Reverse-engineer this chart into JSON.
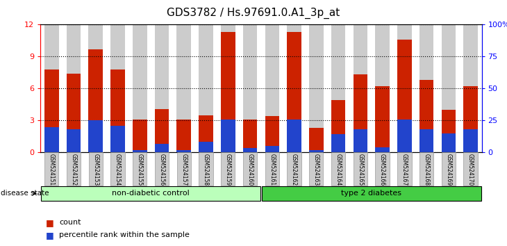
{
  "title": "GDS3782 / Hs.97691.0.A1_3p_at",
  "samples": [
    "GSM524151",
    "GSM524152",
    "GSM524153",
    "GSM524154",
    "GSM524155",
    "GSM524156",
    "GSM524157",
    "GSM524158",
    "GSM524159",
    "GSM524160",
    "GSM524161",
    "GSM524162",
    "GSM524163",
    "GSM524164",
    "GSM524165",
    "GSM524166",
    "GSM524167",
    "GSM524168",
    "GSM524169",
    "GSM524170"
  ],
  "count_values": [
    7.8,
    7.4,
    9.7,
    7.8,
    3.1,
    4.1,
    3.1,
    3.5,
    11.3,
    3.1,
    3.4,
    11.3,
    2.3,
    4.9,
    7.3,
    6.2,
    10.6,
    6.8,
    4.0,
    6.2
  ],
  "percentile_values": [
    2.4,
    2.2,
    3.0,
    2.5,
    0.2,
    0.8,
    0.2,
    1.0,
    3.1,
    0.4,
    0.6,
    3.1,
    0.2,
    1.7,
    2.2,
    0.5,
    3.1,
    2.2,
    1.8,
    2.2
  ],
  "count_color": "#cc2200",
  "percentile_color": "#2244cc",
  "bar_bg_color": "#cccccc",
  "ylim_left": [
    0,
    12
  ],
  "ylim_right": [
    0,
    100
  ],
  "yticks_left": [
    0,
    3,
    6,
    9,
    12
  ],
  "yticks_right": [
    0,
    25,
    50,
    75,
    100
  ],
  "ytick_labels_right": [
    "0",
    "25",
    "50",
    "75",
    "100%"
  ],
  "groups": [
    {
      "label": "non-diabetic control",
      "start": 0,
      "end": 9,
      "color": "#bbffbb"
    },
    {
      "label": "type 2 diabetes",
      "start": 10,
      "end": 19,
      "color": "#44cc44"
    }
  ],
  "group_row_label": "disease state",
  "legend_count": "count",
  "legend_percentile": "percentile rank within the sample",
  "background_xticklabels": "#cccccc",
  "title_color": "#000000",
  "title_fontsize": 11
}
